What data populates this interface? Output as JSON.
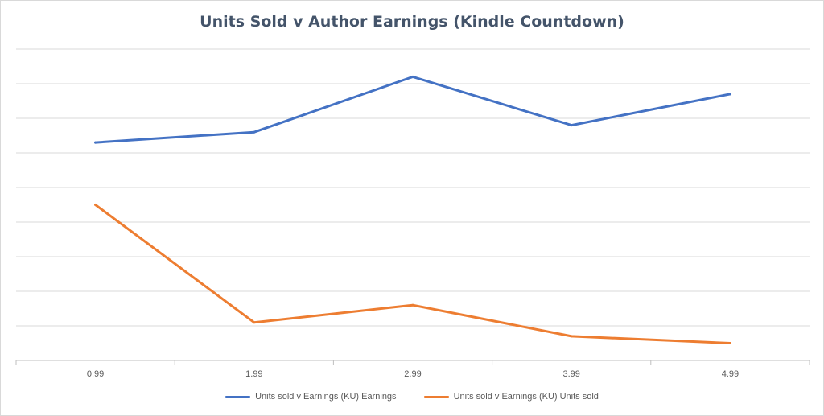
{
  "chart_data": {
    "type": "line",
    "title": "Units Sold v Author Earnings (Kindle Countdown)",
    "categories": [
      "0.99",
      "1.99",
      "2.99",
      "3.99",
      "4.99"
    ],
    "ylim": [
      0,
      9
    ],
    "grid": true,
    "legend_position": "bottom",
    "series": [
      {
        "name": "Units sold v Earnings (KU) Earnings",
        "color": "#4472c4",
        "values": [
          6.3,
          6.6,
          8.2,
          6.8,
          7.7
        ]
      },
      {
        "name": "Units sold v Earnings (KU) Units sold",
        "color": "#ed7d31",
        "values": [
          4.5,
          1.1,
          1.6,
          0.7,
          0.5
        ]
      }
    ]
  }
}
